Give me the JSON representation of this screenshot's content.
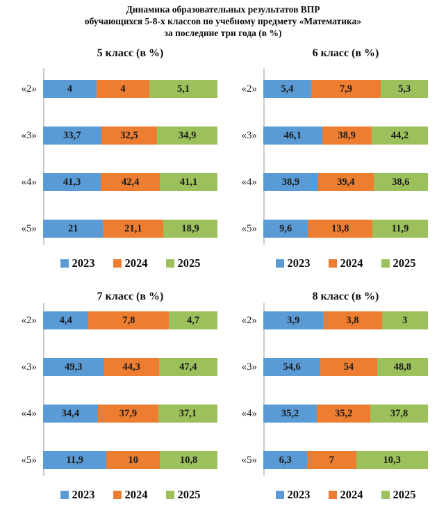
{
  "page_title": [
    "Динамика образовательных результатов ВПР",
    "обучающихся 5-8-х классов по учебному предмету «Математика»",
    "за последние три года (в %)"
  ],
  "series_colors": {
    "2023": "#5B9BD5",
    "2024": "#ED7D31",
    "2025": "#9CC05C"
  },
  "axis_line_color": "#cccccc",
  "chart_data": [
    {
      "type": "bar",
      "orientation": "horizontal",
      "stacked_percent": true,
      "title": "5 класс (в %)",
      "categories": [
        "«2»",
        "«3»",
        "«4»",
        "«5»"
      ],
      "series": [
        {
          "name": "2023",
          "values": [
            4,
            33.7,
            41.3,
            21
          ],
          "labels": [
            "4",
            "33,7",
            "41,3",
            "21"
          ]
        },
        {
          "name": "2024",
          "values": [
            4,
            32.5,
            42.4,
            21.1
          ],
          "labels": [
            "4",
            "32,5",
            "42,4",
            "21,1"
          ]
        },
        {
          "name": "2025",
          "values": [
            5.1,
            34.9,
            41.1,
            18.9
          ],
          "labels": [
            "5,1",
            "34,9",
            "41,1",
            "18,9"
          ]
        }
      ],
      "legend": [
        "2023",
        "2024",
        "2025"
      ],
      "legend_position": "bottom"
    },
    {
      "type": "bar",
      "orientation": "horizontal",
      "stacked_percent": true,
      "title": "6 класс (в %)",
      "categories": [
        "«2»",
        "«3»",
        "«4»",
        "«5»"
      ],
      "series": [
        {
          "name": "2023",
          "values": [
            5.4,
            46.1,
            38.9,
            9.6
          ],
          "labels": [
            "5,4",
            "46,1",
            "38,9",
            "9,6"
          ]
        },
        {
          "name": "2024",
          "values": [
            7.9,
            38.9,
            39.4,
            13.8
          ],
          "labels": [
            "7,9",
            "38,9",
            "39,4",
            "13,8"
          ]
        },
        {
          "name": "2025",
          "values": [
            5.3,
            44.2,
            38.6,
            11.9
          ],
          "labels": [
            "5,3",
            "44,2",
            "38,6",
            "11,9"
          ]
        }
      ],
      "legend": [
        "2023",
        "2024",
        "2025"
      ],
      "legend_position": "bottom"
    },
    {
      "type": "bar",
      "orientation": "horizontal",
      "stacked_percent": true,
      "title": "7 класс (в %)",
      "categories": [
        "«2»",
        "«3»",
        "«4»",
        "«5»"
      ],
      "series": [
        {
          "name": "2023",
          "values": [
            4.4,
            49.3,
            34.4,
            11.9
          ],
          "labels": [
            "4,4",
            "49,3",
            "34,4",
            "11,9"
          ]
        },
        {
          "name": "2024",
          "values": [
            7.8,
            44.3,
            37.9,
            10
          ],
          "labels": [
            "7,8",
            "44,3",
            "37,9",
            "10"
          ]
        },
        {
          "name": "2025",
          "values": [
            4.7,
            47.4,
            37.1,
            10.8
          ],
          "labels": [
            "4,7",
            "47,4",
            "37,1",
            "10,8"
          ]
        }
      ],
      "legend": [
        "2023",
        "2024",
        "2025"
      ],
      "legend_position": "bottom"
    },
    {
      "type": "bar",
      "orientation": "horizontal",
      "stacked_percent": true,
      "title": "8 класс (в %)",
      "categories": [
        "«2»",
        "«3»",
        "«4»",
        "«5»"
      ],
      "series": [
        {
          "name": "2023",
          "values": [
            3.9,
            54.6,
            35.2,
            6.3
          ],
          "labels": [
            "3,9",
            "54,6",
            "35,2",
            "6,3"
          ]
        },
        {
          "name": "2024",
          "values": [
            3.8,
            54,
            35.2,
            7
          ],
          "labels": [
            "3,8",
            "54",
            "35,2",
            "7"
          ]
        },
        {
          "name": "2025",
          "values": [
            3,
            48.8,
            37.8,
            10.3
          ],
          "labels": [
            "3",
            "48,8",
            "37,8",
            "10,3"
          ]
        }
      ],
      "legend": [
        "2023",
        "2024",
        "2025"
      ],
      "legend_position": "bottom"
    }
  ]
}
